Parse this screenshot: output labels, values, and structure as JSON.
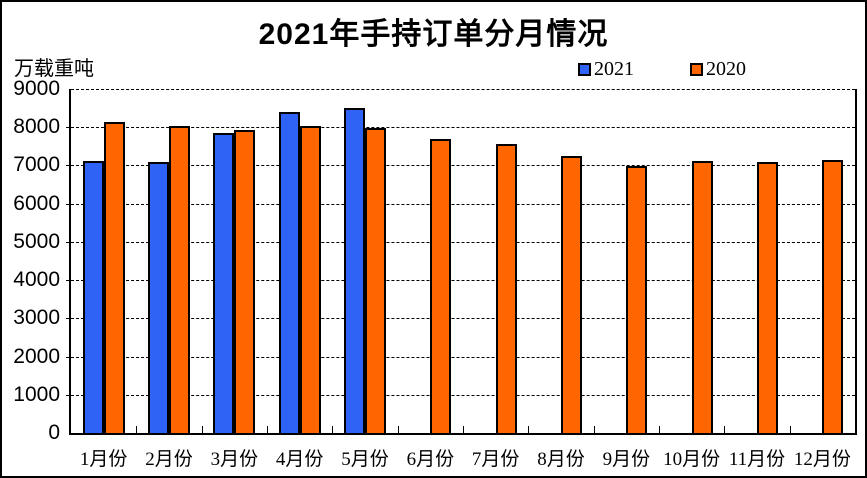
{
  "chart_data": {
    "type": "bar",
    "title": "2021年手持订单分月情况",
    "ylabel": "万载重吨",
    "xlabel": "",
    "categories": [
      "1月份",
      "2月份",
      "3月份",
      "4月份",
      "5月份",
      "6月份",
      "7月份",
      "8月份",
      "9月份",
      "10月份",
      "11月份",
      "12月份"
    ],
    "series": [
      {
        "name": "2021",
        "color": "#2E63F6",
        "values": [
          7110,
          7080,
          7840,
          8390,
          8500,
          null,
          null,
          null,
          null,
          null,
          null,
          null
        ]
      },
      {
        "name": "2020",
        "color": "#FF6600",
        "values": [
          8140,
          8030,
          7930,
          8030,
          7980,
          7690,
          7570,
          7260,
          6990,
          7120,
          7100,
          7140
        ]
      }
    ],
    "ylim": [
      0,
      9000
    ],
    "ytick_interval": 1000,
    "grid": "horizontal-dashed",
    "legend_position": "top-right",
    "bar_border_color": "#000000",
    "background_color": "#FFFFFF"
  }
}
